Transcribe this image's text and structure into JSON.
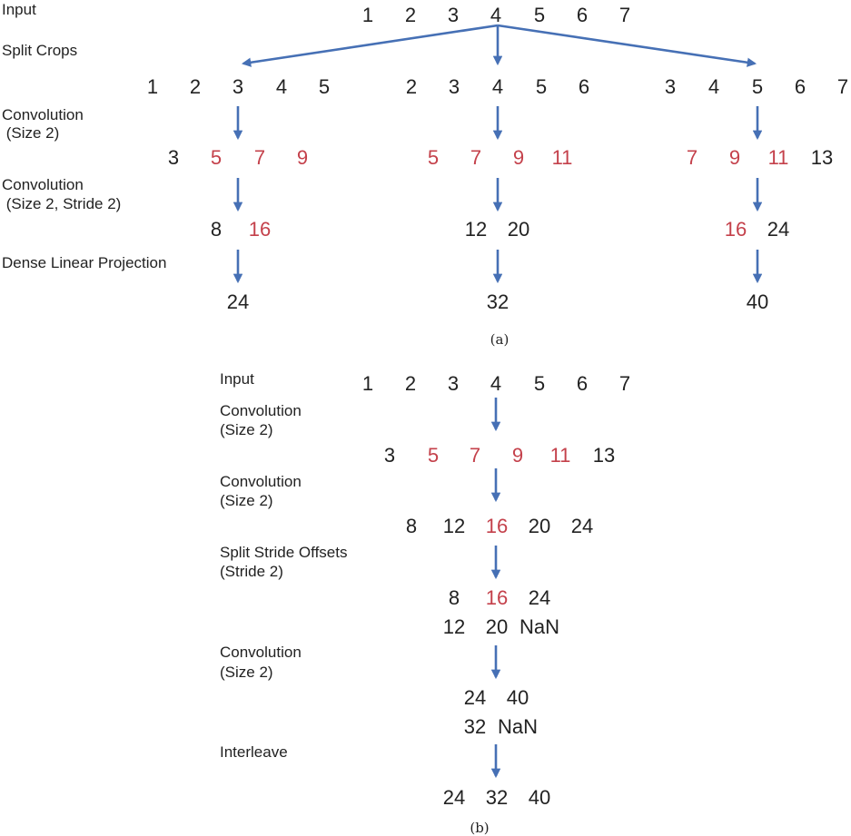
{
  "colors": {
    "normal": "#222222",
    "highlight": "#c4414b",
    "arrow": "#4670b5"
  },
  "panel_a": {
    "caption": "(a)",
    "labels": {
      "input": "Input",
      "split_crops": "Split Crops",
      "conv1_line1": "Convolution",
      "conv1_line2": " (Size 2)",
      "conv2_line1": "Convolution",
      "conv2_line2": " (Size 2, Stride 2)",
      "dense": "Dense Linear Projection"
    },
    "input_row": [
      {
        "text": "1",
        "hl": false
      },
      {
        "text": "2",
        "hl": false
      },
      {
        "text": "3",
        "hl": false
      },
      {
        "text": "4",
        "hl": false
      },
      {
        "text": "5",
        "hl": false
      },
      {
        "text": "6",
        "hl": false
      },
      {
        "text": "7",
        "hl": false
      }
    ],
    "columns": [
      {
        "crop": [
          {
            "text": "1",
            "hl": false
          },
          {
            "text": "2",
            "hl": false
          },
          {
            "text": "3",
            "hl": false
          },
          {
            "text": "4",
            "hl": false
          },
          {
            "text": "5",
            "hl": false
          }
        ],
        "conv1": [
          {
            "text": "3",
            "hl": false
          },
          {
            "text": "5",
            "hl": true
          },
          {
            "text": "7",
            "hl": true
          },
          {
            "text": "9",
            "hl": true
          }
        ],
        "conv2": [
          {
            "text": "8",
            "hl": false
          },
          {
            "text": "16",
            "hl": true
          }
        ],
        "output": [
          {
            "text": "24",
            "hl": false
          }
        ]
      },
      {
        "crop": [
          {
            "text": "2",
            "hl": false
          },
          {
            "text": "3",
            "hl": false
          },
          {
            "text": "4",
            "hl": false
          },
          {
            "text": "5",
            "hl": false
          },
          {
            "text": "6",
            "hl": false
          }
        ],
        "conv1": [
          {
            "text": "5",
            "hl": true
          },
          {
            "text": "7",
            "hl": true
          },
          {
            "text": "9",
            "hl": true
          },
          {
            "text": "11",
            "hl": true
          }
        ],
        "conv2": [
          {
            "text": "12",
            "hl": false
          },
          {
            "text": "20",
            "hl": false
          }
        ],
        "output": [
          {
            "text": "32",
            "hl": false
          }
        ]
      },
      {
        "crop": [
          {
            "text": "3",
            "hl": false
          },
          {
            "text": "4",
            "hl": false
          },
          {
            "text": "5",
            "hl": false
          },
          {
            "text": "6",
            "hl": false
          },
          {
            "text": "7",
            "hl": false
          }
        ],
        "conv1": [
          {
            "text": "7",
            "hl": true
          },
          {
            "text": "9",
            "hl": true
          },
          {
            "text": "11",
            "hl": true
          },
          {
            "text": "13",
            "hl": false
          }
        ],
        "conv2": [
          {
            "text": "16",
            "hl": true
          },
          {
            "text": "24",
            "hl": false
          }
        ],
        "output": [
          {
            "text": "40",
            "hl": false
          }
        ]
      }
    ]
  },
  "panel_b": {
    "caption": "(b)",
    "labels": {
      "input": "Input",
      "conv1_line1": "Convolution",
      "conv1_line2": "(Size 2)",
      "conv2_line1": "Convolution",
      "conv2_line2": "(Size 2)",
      "split_line1": "Split Stride Offsets",
      "split_line2": "(Stride 2)",
      "conv3_line1": "Convolution",
      "conv3_line2": "(Size 2)",
      "interleave": "Interleave"
    },
    "input_row": [
      {
        "text": "1",
        "hl": false
      },
      {
        "text": "2",
        "hl": false
      },
      {
        "text": "3",
        "hl": false
      },
      {
        "text": "4",
        "hl": false
      },
      {
        "text": "5",
        "hl": false
      },
      {
        "text": "6",
        "hl": false
      },
      {
        "text": "7",
        "hl": false
      }
    ],
    "conv1_row": [
      {
        "text": "3",
        "hl": false
      },
      {
        "text": "5",
        "hl": true
      },
      {
        "text": "7",
        "hl": true
      },
      {
        "text": "9",
        "hl": true
      },
      {
        "text": "11",
        "hl": true
      },
      {
        "text": "13",
        "hl": false
      }
    ],
    "conv2_row": [
      {
        "text": "8",
        "hl": false
      },
      {
        "text": "12",
        "hl": false
      },
      {
        "text": "16",
        "hl": true
      },
      {
        "text": "20",
        "hl": false
      },
      {
        "text": "24",
        "hl": false
      }
    ],
    "split_row1": [
      {
        "text": "8",
        "hl": false
      },
      {
        "text": "16",
        "hl": true
      },
      {
        "text": "24",
        "hl": false
      }
    ],
    "split_row2": [
      {
        "text": "12",
        "hl": false
      },
      {
        "text": "20",
        "hl": false
      },
      {
        "text": "NaN",
        "hl": false
      }
    ],
    "conv3_row1": [
      {
        "text": "24",
        "hl": false
      },
      {
        "text": "40",
        "hl": false
      }
    ],
    "conv3_row2": [
      {
        "text": "32",
        "hl": false
      },
      {
        "text": "NaN",
        "hl": false
      }
    ],
    "output_row": [
      {
        "text": "24",
        "hl": false
      },
      {
        "text": "32",
        "hl": false
      },
      {
        "text": "40",
        "hl": false
      }
    ]
  }
}
